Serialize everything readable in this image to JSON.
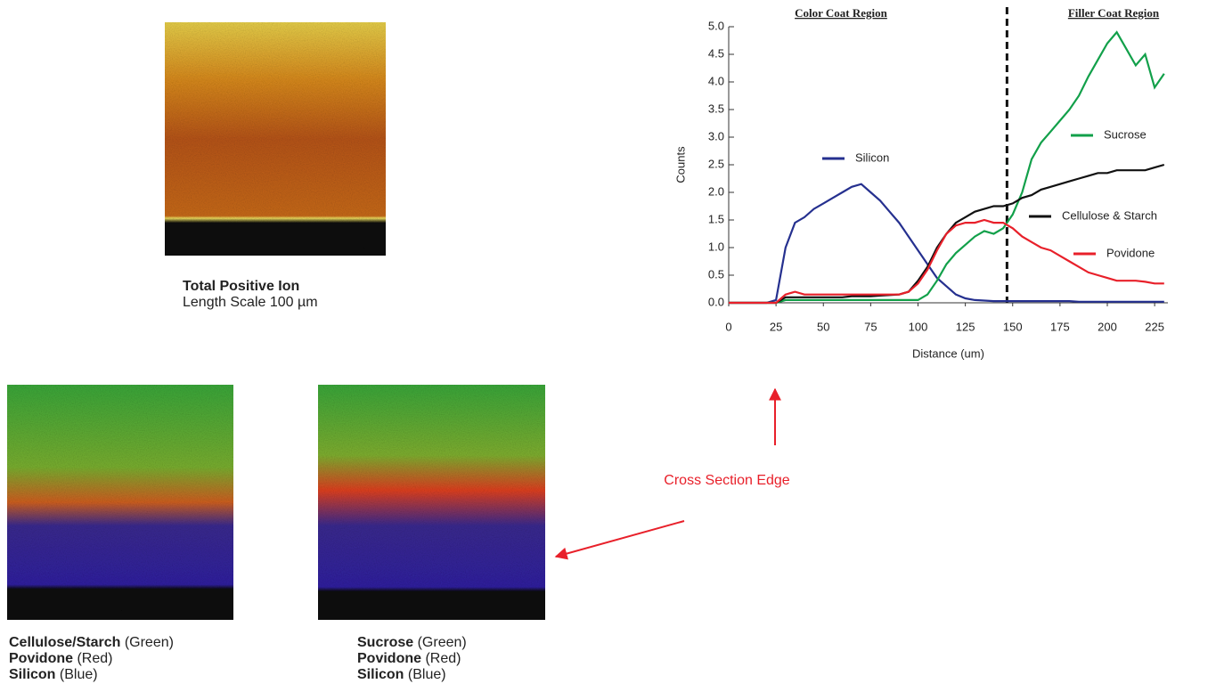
{
  "chart_data": {
    "type": "line",
    "region_labels": [
      "Color Coat Region",
      "Filler Coat Region"
    ],
    "divider_x": 147,
    "xlabel": "Distance (um)",
    "ylabel": "Counts",
    "x": [
      0,
      5,
      10,
      15,
      20,
      25,
      30,
      35,
      40,
      45,
      50,
      55,
      60,
      65,
      70,
      75,
      80,
      85,
      90,
      95,
      100,
      105,
      110,
      115,
      120,
      125,
      130,
      135,
      140,
      145,
      150,
      155,
      160,
      165,
      170,
      175,
      180,
      185,
      190,
      195,
      200,
      205,
      210,
      215,
      220,
      225,
      230
    ],
    "series": [
      {
        "name": "Silicon",
        "color": "#25308f",
        "values": [
          0,
          0,
          0,
          0,
          0,
          0.05,
          1.0,
          1.45,
          1.55,
          1.7,
          1.8,
          1.9,
          2.0,
          2.1,
          2.15,
          2.0,
          1.85,
          1.65,
          1.45,
          1.2,
          0.95,
          0.7,
          0.45,
          0.3,
          0.15,
          0.08,
          0.05,
          0.04,
          0.03,
          0.03,
          0.03,
          0.03,
          0.03,
          0.03,
          0.03,
          0.03,
          0.03,
          0.02,
          0.02,
          0.02,
          0.02,
          0.02,
          0.02,
          0.02,
          0.02,
          0.02,
          0.02
        ]
      },
      {
        "name": "Sucrose",
        "color": "#12a04a",
        "values": [
          0,
          0,
          0,
          0,
          0,
          0,
          0.05,
          0.05,
          0.05,
          0.05,
          0.05,
          0.05,
          0.05,
          0.05,
          0.05,
          0.05,
          0.05,
          0.05,
          0.05,
          0.05,
          0.05,
          0.15,
          0.4,
          0.7,
          0.9,
          1.05,
          1.2,
          1.3,
          1.25,
          1.35,
          1.6,
          2.0,
          2.6,
          2.9,
          3.1,
          3.3,
          3.5,
          3.75,
          4.1,
          4.4,
          4.7,
          4.9,
          4.6,
          4.3,
          4.5,
          3.9,
          4.15
        ]
      },
      {
        "name": "Cellulose & Starch",
        "color": "#111111",
        "values": [
          0,
          0,
          0,
          0,
          0,
          0,
          0.1,
          0.1,
          0.1,
          0.1,
          0.1,
          0.1,
          0.1,
          0.12,
          0.12,
          0.12,
          0.13,
          0.14,
          0.15,
          0.2,
          0.4,
          0.65,
          1.0,
          1.25,
          1.45,
          1.55,
          1.65,
          1.7,
          1.75,
          1.75,
          1.8,
          1.9,
          1.95,
          2.05,
          2.1,
          2.15,
          2.2,
          2.25,
          2.3,
          2.35,
          2.35,
          2.4,
          2.4,
          2.4,
          2.4,
          2.45,
          2.5
        ]
      },
      {
        "name": "Povidone",
        "color": "#e8202a",
        "values": [
          0,
          0,
          0,
          0,
          0,
          0,
          0.15,
          0.2,
          0.15,
          0.15,
          0.15,
          0.15,
          0.15,
          0.15,
          0.15,
          0.15,
          0.15,
          0.15,
          0.15,
          0.2,
          0.35,
          0.6,
          0.95,
          1.25,
          1.4,
          1.45,
          1.45,
          1.5,
          1.45,
          1.45,
          1.35,
          1.2,
          1.1,
          1.0,
          0.95,
          0.85,
          0.75,
          0.65,
          0.55,
          0.5,
          0.45,
          0.4,
          0.4,
          0.4,
          0.38,
          0.35,
          0.35
        ]
      }
    ],
    "xlim": [
      0,
      232
    ],
    "ylim": [
      0,
      5
    ],
    "xticks": [
      0,
      25,
      50,
      75,
      100,
      125,
      150,
      175,
      200,
      225
    ],
    "yticks": [
      {
        "value": 0,
        "label": "0.0"
      },
      {
        "value": 0.5,
        "label": "0.5"
      },
      {
        "value": 1,
        "label": "1.0"
      },
      {
        "value": 1.5,
        "label": "1.5"
      },
      {
        "value": 2,
        "label": "2.0"
      },
      {
        "value": 2.5,
        "label": "2.5"
      },
      {
        "value": 3,
        "label": "3.0"
      },
      {
        "value": 3.5,
        "label": "3.5"
      },
      {
        "value": 4,
        "label": "4.0"
      },
      {
        "value": 4.5,
        "label": "4.5"
      },
      {
        "value": 5,
        "label": "5.0"
      }
    ]
  },
  "annotation": "Cross Section Edge",
  "images": [
    {
      "lines": [
        [
          {
            "text": "Total Positive Ion",
            "bold": true
          }
        ],
        [
          {
            "text": "Length Scale 100 µm",
            "bold": false
          }
        ]
      ]
    },
    {
      "lines": [
        [
          {
            "text": "Cellulose/Starch",
            "bold": true
          },
          {
            "text": " (Green)",
            "bold": false
          }
        ],
        [
          {
            "text": "Povidone",
            "bold": true
          },
          {
            "text": " (Red)",
            "bold": false
          }
        ],
        [
          {
            "text": "Silicon",
            "bold": true
          },
          {
            "text": " (Blue)",
            "bold": false
          }
        ]
      ]
    },
    {
      "lines": [
        [
          {
            "text": "Sucrose",
            "bold": true
          },
          {
            "text": " (Green)",
            "bold": false
          }
        ],
        [
          {
            "text": "Povidone",
            "bold": true
          },
          {
            "text": " (Red)",
            "bold": false
          }
        ],
        [
          {
            "text": "Silicon",
            "bold": true
          },
          {
            "text": " (Blue)",
            "bold": false
          }
        ]
      ]
    }
  ]
}
